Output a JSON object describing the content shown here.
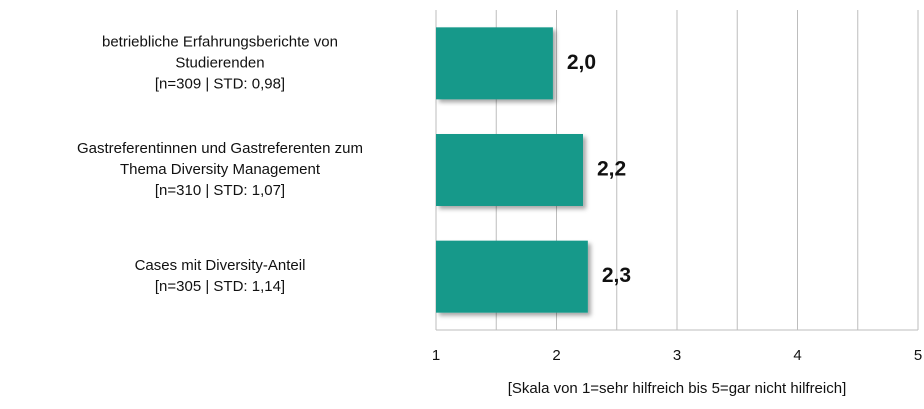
{
  "chart_data": {
    "type": "barh",
    "categories": [
      [
        "betriebliche Erfahrungsberichte von",
        "Studierenden",
        "[n=309 | STD: 0,98]"
      ],
      [
        "Gastreferentinnen und Gastreferenten zum",
        "Thema Diversity Management",
        "[n=310 | STD: 1,07]"
      ],
      [
        "Cases mit Diversity-Anteil",
        "[n=305 | STD: 1,14]"
      ]
    ],
    "values": [
      1.97,
      2.22,
      2.26
    ],
    "value_labels": [
      "2,0",
      "2,2",
      "2,3"
    ],
    "color": "#13998a",
    "xlim": [
      1,
      5
    ],
    "xticks": [
      1,
      2,
      3,
      4,
      5
    ],
    "xminor": [
      1.5,
      2.5,
      3.5,
      4.5
    ],
    "grid": true,
    "xlabel": "[Skala von 1=sehr hilfreich bis 5=gar nicht hilfreich]"
  }
}
